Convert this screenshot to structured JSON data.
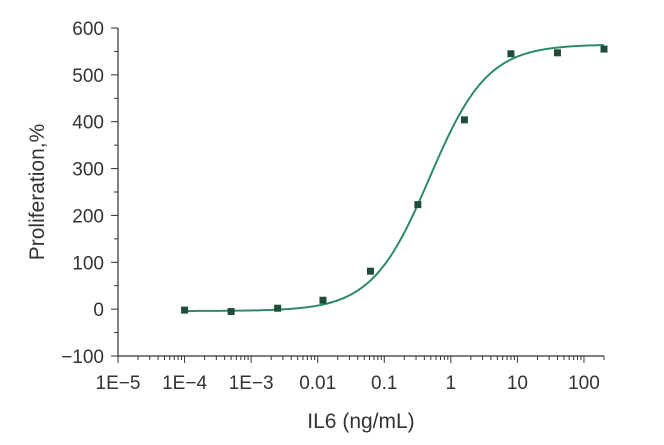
{
  "chart_data": {
    "type": "scatter",
    "title": "",
    "xlabel": "IL6 (ng/mL)",
    "ylabel": "Proliferation,%",
    "x_scale": "log",
    "xlim": [
      1e-05,
      200
    ],
    "ylim": [
      -100,
      600
    ],
    "grid": false,
    "legend": "none",
    "x_tick_values": [
      1e-05,
      0.0001,
      0.001,
      0.01,
      0.1,
      1,
      10,
      100
    ],
    "x_tick_labels": [
      "1E−5",
      "1E−4",
      "1E−3",
      "0.01",
      "0.1",
      "1",
      "10",
      "100"
    ],
    "y_tick_values": [
      -100,
      0,
      100,
      200,
      300,
      400,
      500,
      600
    ],
    "y_tick_labels": [
      "−100",
      "0",
      "100",
      "200",
      "300",
      "400",
      "500",
      "600"
    ],
    "series": [
      {
        "kind": "points",
        "marker": "square",
        "color": "#1f4d3a",
        "x": [
          0.0001,
          0.0005,
          0.0025,
          0.012,
          0.062,
          0.32,
          1.6,
          8,
          40,
          200
        ],
        "y": [
          -2,
          -5,
          2,
          19,
          81,
          223,
          404,
          545,
          547,
          555
        ]
      },
      {
        "kind": "fit-curve",
        "color": "#2e8b6a",
        "bottom": -4,
        "top": 565,
        "ec50": 0.48,
        "hill": 1.0
      }
    ]
  }
}
